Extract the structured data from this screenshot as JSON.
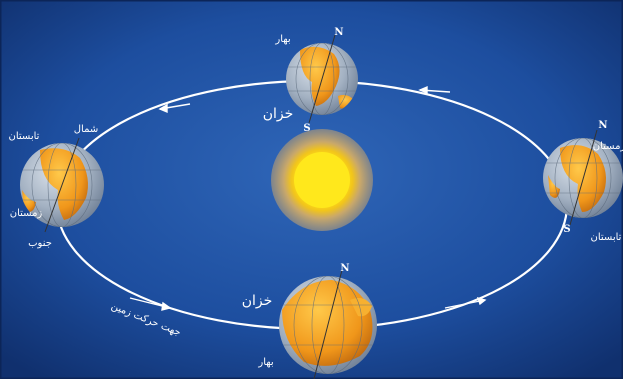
{
  "labels": {
    "top_upper": "بهار",
    "top_lower": "خزان",
    "bottom_upper": "خزان",
    "bottom_lower": "بهار",
    "left_upper": "تابستان",
    "left_lower": "زمستان",
    "right_upper": "زمستان",
    "right_lower": "تابستان",
    "north_fa": "شمال",
    "south_fa": "جنوب",
    "north": "N",
    "south": "S",
    "rotation_direction": "جهت حرکت زمین"
  },
  "colors": {
    "background": "#1b4a9a",
    "orbit": "#ffffff",
    "sun": "#ffe21a",
    "ocean": "#9aa8b8",
    "land": "#f4a21c"
  }
}
